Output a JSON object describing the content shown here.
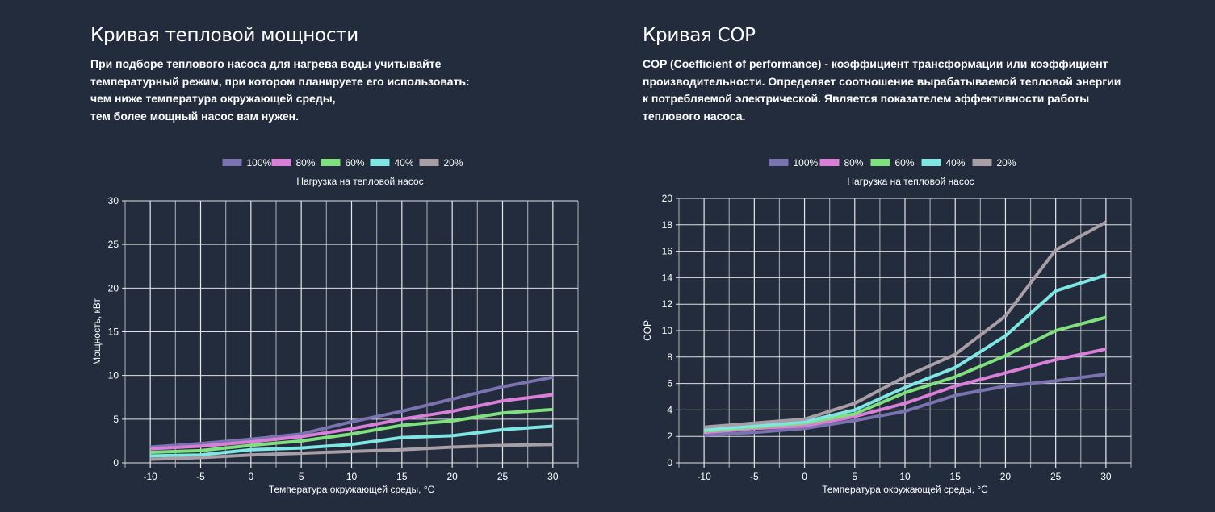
{
  "left": {
    "title": "Кривая тепловой мощности",
    "description": [
      "При подборе теплового насоса для нагрева воды учитывайте",
      "температурный режим, при котором планируете его использовать:",
      "чем ниже температура окружающей среды,",
      "тем более мощный насос вам нужен."
    ]
  },
  "right": {
    "title": "Кривая COP",
    "description": [
      "COP (Coefficient of performance) - коэффициент трансформации или коэффициент",
      "производительности. Определяет соотношение вырабатываемой тепловой энергии",
      "к потребляемой электрической. Является показателем эффективности работы",
      "теплового насоса."
    ]
  },
  "chart_data": [
    {
      "type": "line",
      "title": "Нагрузка на тепловой насос",
      "xlabel": "Температура окружающей среды, °C",
      "ylabel": "Мощность, кВт",
      "x": [
        -10,
        -5,
        0,
        5,
        10,
        15,
        20,
        25,
        30
      ],
      "xticks": [
        "-10",
        "-5",
        "0",
        "5",
        "10",
        "15",
        "20",
        "25",
        "30"
      ],
      "yticks": [
        "0",
        "5",
        "10",
        "15",
        "20",
        "25",
        "30"
      ],
      "xlim": [
        -12.5,
        32.5
      ],
      "ylim": [
        0,
        30
      ],
      "grid": true,
      "legend_position": "top-center",
      "series": [
        {
          "name": "100%",
          "color": "#7b72b0",
          "values": [
            1.8,
            2.2,
            2.7,
            3.3,
            4.7,
            5.9,
            7.3,
            8.7,
            9.8
          ]
        },
        {
          "name": "80%",
          "color": "#d97fd8",
          "values": [
            1.6,
            1.9,
            2.4,
            3.0,
            3.9,
            5.0,
            5.9,
            7.1,
            7.8
          ]
        },
        {
          "name": "60%",
          "color": "#80e07e",
          "values": [
            1.2,
            1.4,
            2.0,
            2.5,
            3.3,
            4.3,
            4.8,
            5.7,
            6.1
          ]
        },
        {
          "name": "40%",
          "color": "#7fe6e4",
          "values": [
            0.8,
            0.9,
            1.5,
            1.7,
            2.1,
            2.9,
            3.1,
            3.8,
            4.2
          ]
        },
        {
          "name": "20%",
          "color": "#a89ea6",
          "values": [
            0.4,
            0.6,
            0.9,
            1.1,
            1.3,
            1.5,
            1.8,
            2.0,
            2.1
          ]
        }
      ]
    },
    {
      "type": "line",
      "title": "Нагрузка на тепловой насос",
      "xlabel": "Температура окружающей среды, °C",
      "ylabel": "COP",
      "x": [
        -10,
        -5,
        0,
        5,
        10,
        15,
        20,
        25,
        30
      ],
      "xticks": [
        "-10",
        "-5",
        "0",
        "5",
        "10",
        "15",
        "20",
        "25",
        "30"
      ],
      "yticks": [
        "0",
        "2",
        "4",
        "6",
        "8",
        "10",
        "12",
        "14",
        "16",
        "18",
        "20"
      ],
      "xlim": [
        -12.5,
        32.5
      ],
      "ylim": [
        0,
        20
      ],
      "grid": true,
      "legend_position": "top-center",
      "series": [
        {
          "name": "100%",
          "color": "#7b72b0",
          "values": [
            2.1,
            2.3,
            2.6,
            3.2,
            3.9,
            5.1,
            5.8,
            6.2,
            6.7
          ]
        },
        {
          "name": "80%",
          "color": "#d97fd8",
          "values": [
            2.3,
            2.6,
            2.8,
            3.5,
            4.5,
            5.8,
            6.8,
            7.8,
            8.6
          ]
        },
        {
          "name": "60%",
          "color": "#80e07e",
          "values": [
            2.4,
            2.7,
            3.0,
            3.7,
            5.3,
            6.5,
            8.1,
            10.0,
            11.0
          ]
        },
        {
          "name": "40%",
          "color": "#7fe6e4",
          "values": [
            2.5,
            2.8,
            3.1,
            4.0,
            5.7,
            7.2,
            9.6,
            13.0,
            14.2
          ]
        },
        {
          "name": "20%",
          "color": "#a89ea6",
          "values": [
            2.7,
            3.0,
            3.3,
            4.5,
            6.5,
            8.2,
            11.1,
            16.1,
            18.2
          ]
        }
      ]
    }
  ]
}
